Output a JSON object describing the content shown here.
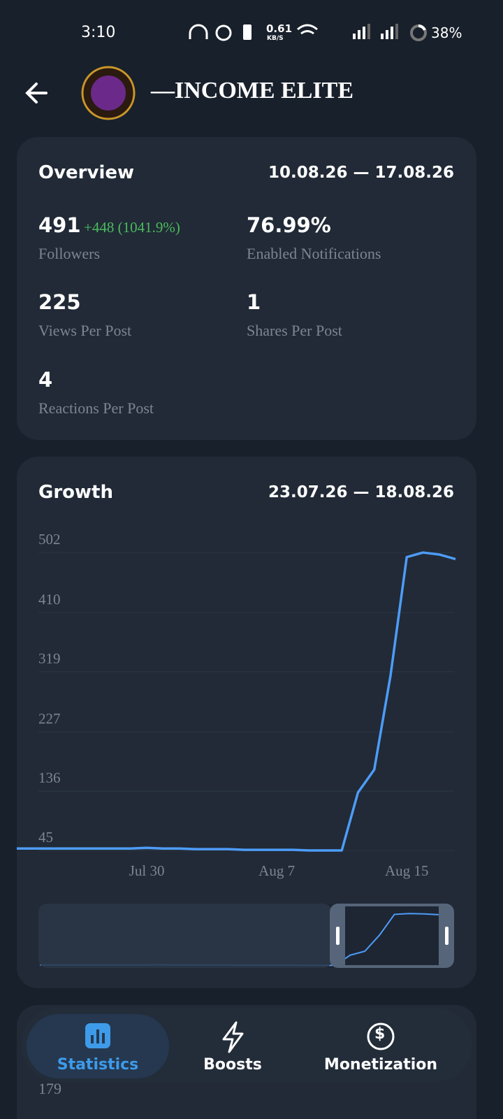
{
  "status_bar": {
    "time": "3:10",
    "speed": "0.61",
    "speed_unit": "KB/S",
    "battery": "38%"
  },
  "header": {
    "title": "—INCOME ELITE"
  },
  "overview": {
    "title": "Overview",
    "date_range": "10.08.26 — 17.08.26",
    "stats": [
      {
        "value": "491",
        "change": "+448 (1041.9%)",
        "label": "Followers"
      },
      {
        "value": "76.99%",
        "label": "Enabled Notifications"
      },
      {
        "value": "225",
        "label": "Views Per Post"
      },
      {
        "value": "1",
        "label": "Shares Per Post"
      },
      {
        "value": "4",
        "label": "Reactions Per Post"
      }
    ]
  },
  "chart_data": {
    "type": "line",
    "title": "Growth",
    "date_range": "23.07.26 — 18.08.26",
    "categories": [
      null,
      null,
      null,
      null,
      null,
      null,
      null,
      null,
      "Jul 30",
      null,
      null,
      null,
      null,
      null,
      null,
      null,
      "Aug 7",
      null,
      null,
      null,
      null,
      null,
      null,
      null,
      "Aug 15",
      null,
      null,
      null
    ],
    "series": [
      {
        "color": "#4d9cf8",
        "values": [
          48,
          48,
          48,
          48,
          48,
          48,
          48,
          48,
          49,
          48,
          48,
          47,
          47,
          47,
          46,
          46,
          46,
          46,
          45,
          45,
          45,
          134,
          169,
          313,
          495,
          502,
          499,
          492
        ]
      }
    ],
    "ylim": [
      40,
      510
    ],
    "yticks": [
      45,
      136,
      227,
      319,
      410,
      502
    ],
    "grid": true
  },
  "nav": {
    "items": [
      "Statistics",
      "Boosts",
      "Monetization"
    ]
  },
  "partial_tick": "179"
}
